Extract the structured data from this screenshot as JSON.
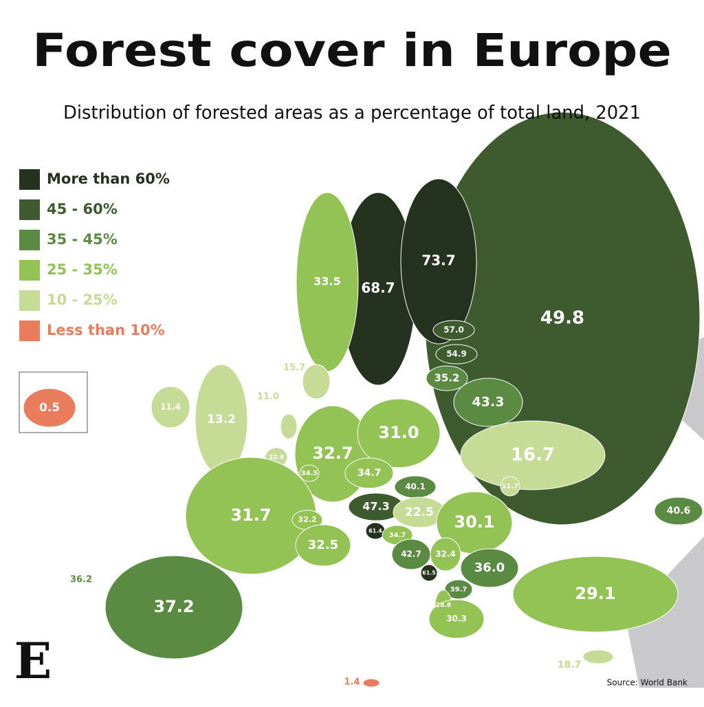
{
  "header": {
    "title": "Forest cover in Europe",
    "subtitle": "Distribution of forested areas as a percentage of total land, 2021"
  },
  "legend": [
    {
      "label": "More than 60%",
      "color": "#263220"
    },
    {
      "label": "45 - 60%",
      "color": "#3e5a2f"
    },
    {
      "label": "35 - 45%",
      "color": "#5b8b43"
    },
    {
      "label": "25 - 35%",
      "color": "#93c355"
    },
    {
      "label": "10 - 25%",
      "color": "#c6db95"
    },
    {
      "label": "Less than 10%",
      "color": "#ea7c5e"
    }
  ],
  "regions": [
    {
      "label": "49.8",
      "color": "#3e5a2f"
    },
    {
      "label": "68.7",
      "color": "#263220"
    },
    {
      "label": "73.7",
      "color": "#263220"
    },
    {
      "label": "33.5",
      "color": "#93c355"
    },
    {
      "label": "57.0",
      "color": "#3e5a2f"
    },
    {
      "label": "54.9",
      "color": "#3e5a2f"
    },
    {
      "label": "35.2",
      "color": "#5b8b43"
    },
    {
      "label": "43.3",
      "color": "#5b8b43"
    },
    {
      "label": "15.7",
      "color": "#c6db95"
    },
    {
      "label": "11.0",
      "color": "#c6db95"
    },
    {
      "label": "11.4",
      "color": "#c6db95"
    },
    {
      "label": "13.2",
      "color": "#c6db95"
    },
    {
      "label": "0.5",
      "color": "#ea7c5e"
    },
    {
      "label": "32.7",
      "color": "#93c355"
    },
    {
      "label": "31.0",
      "color": "#93c355"
    },
    {
      "label": "16.7",
      "color": "#c6db95"
    },
    {
      "label": "22.8",
      "color": "#c6db95"
    },
    {
      "label": "34.5",
      "color": "#93c355"
    },
    {
      "label": "34.7",
      "color": "#93c355"
    },
    {
      "label": "40.1",
      "color": "#5b8b43"
    },
    {
      "label": "11.7",
      "color": "#c6db95"
    },
    {
      "label": "47.3",
      "color": "#3e5a2f"
    },
    {
      "label": "22.5",
      "color": "#c6db95"
    },
    {
      "label": "30.1",
      "color": "#93c355"
    },
    {
      "label": "40.6",
      "color": "#5b8b43"
    },
    {
      "label": "31.7",
      "color": "#93c355"
    },
    {
      "label": "32.2",
      "color": "#93c355"
    },
    {
      "label": "61.4",
      "color": "#263220"
    },
    {
      "label": "34.7",
      "color": "#93c355"
    },
    {
      "label": "32.5",
      "color": "#93c355"
    },
    {
      "label": "42.7",
      "color": "#5b8b43"
    },
    {
      "label": "32.4",
      "color": "#93c355"
    },
    {
      "label": "36.0",
      "color": "#5b8b43"
    },
    {
      "label": "36.2",
      "color": "#5b8b43"
    },
    {
      "label": "61.5",
      "color": "#263220"
    },
    {
      "label": "39.7",
      "color": "#5b8b43"
    },
    {
      "label": "37.2",
      "color": "#5b8b43"
    },
    {
      "label": "29.1",
      "color": "#93c355"
    },
    {
      "label": "28.8",
      "color": "#93c355"
    },
    {
      "label": "30.3",
      "color": "#93c355"
    },
    {
      "label": "18.7",
      "color": "#c6db95"
    },
    {
      "label": "1.4",
      "color": "#ea7c5e"
    }
  ],
  "source": "Source: World Bank",
  "logo": "E"
}
